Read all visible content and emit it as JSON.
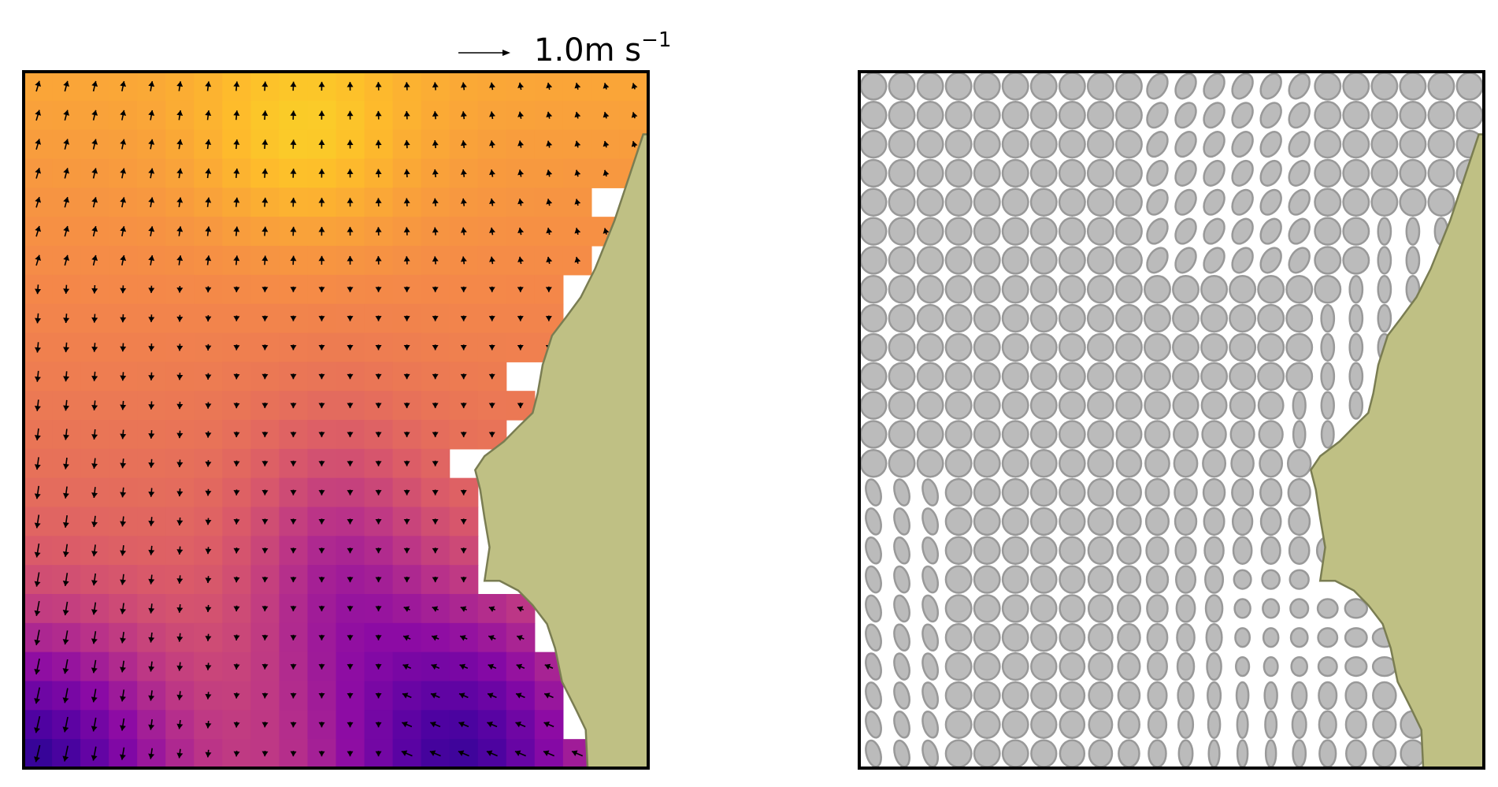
{
  "chart_data": [
    {
      "type": "heatmap",
      "overlay": "quiver",
      "colormap": "plasma",
      "grid": {
        "columns": 22,
        "rows": 24
      },
      "quiver_key": {
        "value": "1.0",
        "unit": "m s",
        "exponent": "−1"
      },
      "land_color": "#bfc084",
      "land_edge_color": "#7a7d52",
      "arrow_color": "#000000",
      "missing_color": "#ffffff"
    },
    {
      "type": "ellipse-field",
      "grid": {
        "columns": 22,
        "rows": 24
      },
      "ellipse_fill": "#bbbbbb",
      "ellipse_edge": "#999999",
      "land_color": "#bfc084",
      "land_edge_color": "#7a7d52"
    }
  ]
}
